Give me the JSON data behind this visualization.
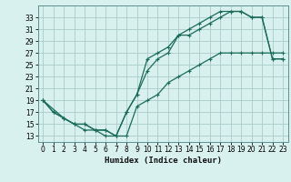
{
  "xlabel": "Humidex (Indice chaleur)",
  "background_color": "#d8f0ee",
  "grid_color": "#aacccc",
  "line_color": "#1a6b5a",
  "xlim": [
    -0.5,
    23.5
  ],
  "ylim": [
    12,
    35
  ],
  "xticks": [
    0,
    1,
    2,
    3,
    4,
    5,
    6,
    7,
    8,
    9,
    10,
    11,
    12,
    13,
    14,
    15,
    16,
    17,
    18,
    19,
    20,
    21,
    22,
    23
  ],
  "yticks": [
    13,
    15,
    17,
    19,
    21,
    23,
    25,
    27,
    29,
    31,
    33
  ],
  "curve1_x": [
    0,
    1,
    2,
    3,
    4,
    5,
    6,
    7,
    8,
    9,
    10,
    11,
    12,
    13,
    14,
    15,
    16,
    17,
    18,
    19,
    20,
    21,
    22,
    23
  ],
  "curve1_y": [
    19,
    17,
    16,
    15,
    15,
    14,
    14,
    13,
    17,
    20,
    26,
    27,
    28,
    30,
    31,
    32,
    33,
    34,
    34,
    34,
    33,
    33,
    26,
    26
  ],
  "curve2_x": [
    0,
    2,
    3,
    4,
    5,
    6,
    7,
    8,
    9,
    10,
    11,
    12,
    13,
    14,
    15,
    16,
    17,
    18,
    19,
    20,
    21,
    22,
    23
  ],
  "curve2_y": [
    19,
    16,
    15,
    15,
    14,
    14,
    13,
    17,
    20,
    24,
    26,
    27,
    30,
    30,
    31,
    32,
    33,
    34,
    34,
    33,
    33,
    26,
    26
  ],
  "curve3_x": [
    0,
    1,
    2,
    3,
    4,
    5,
    6,
    7,
    8,
    9,
    10,
    11,
    12,
    13,
    14,
    15,
    16,
    17,
    18,
    19,
    20,
    21,
    22,
    23
  ],
  "curve3_y": [
    19,
    17,
    16,
    15,
    14,
    14,
    13,
    13,
    13,
    18,
    19,
    20,
    22,
    23,
    24,
    25,
    26,
    27,
    27,
    27,
    27,
    27,
    27,
    27
  ]
}
